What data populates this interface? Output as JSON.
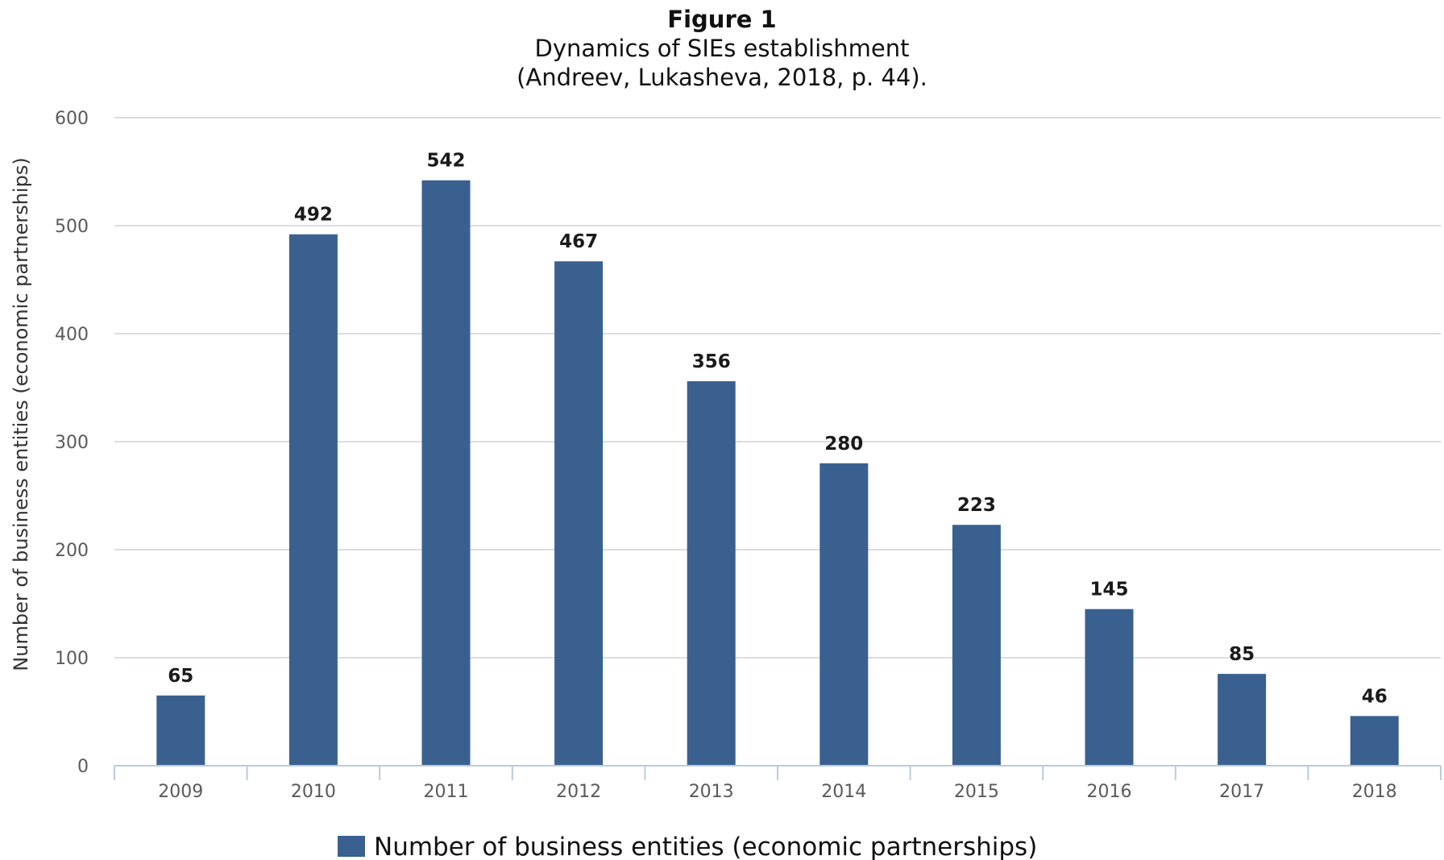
{
  "header": {
    "label": "Figure 1",
    "line1": "Dynamics of SIEs establishment",
    "line2": "(Andreev, Lukasheva, 2018, p. 44)."
  },
  "chart_data": {
    "type": "bar",
    "title": "",
    "xlabel": "",
    "ylabel": "Number of business entities (economic partnerships)",
    "categories": [
      "2009",
      "2010",
      "2011",
      "2012",
      "2013",
      "2014",
      "2015",
      "2016",
      "2017",
      "2018"
    ],
    "series": [
      {
        "name": "Number of business entities (economic partnerships)",
        "values": [
          65,
          492,
          542,
          467,
          356,
          280,
          223,
          145,
          85,
          46
        ],
        "color": "#3a6090"
      }
    ],
    "ylim": [
      0,
      600
    ],
    "yticks": [
      "0",
      "100",
      "200",
      "300",
      "400",
      "500",
      "600"
    ],
    "grid": true,
    "data_labels": true,
    "legend_position": "bottom-center"
  }
}
